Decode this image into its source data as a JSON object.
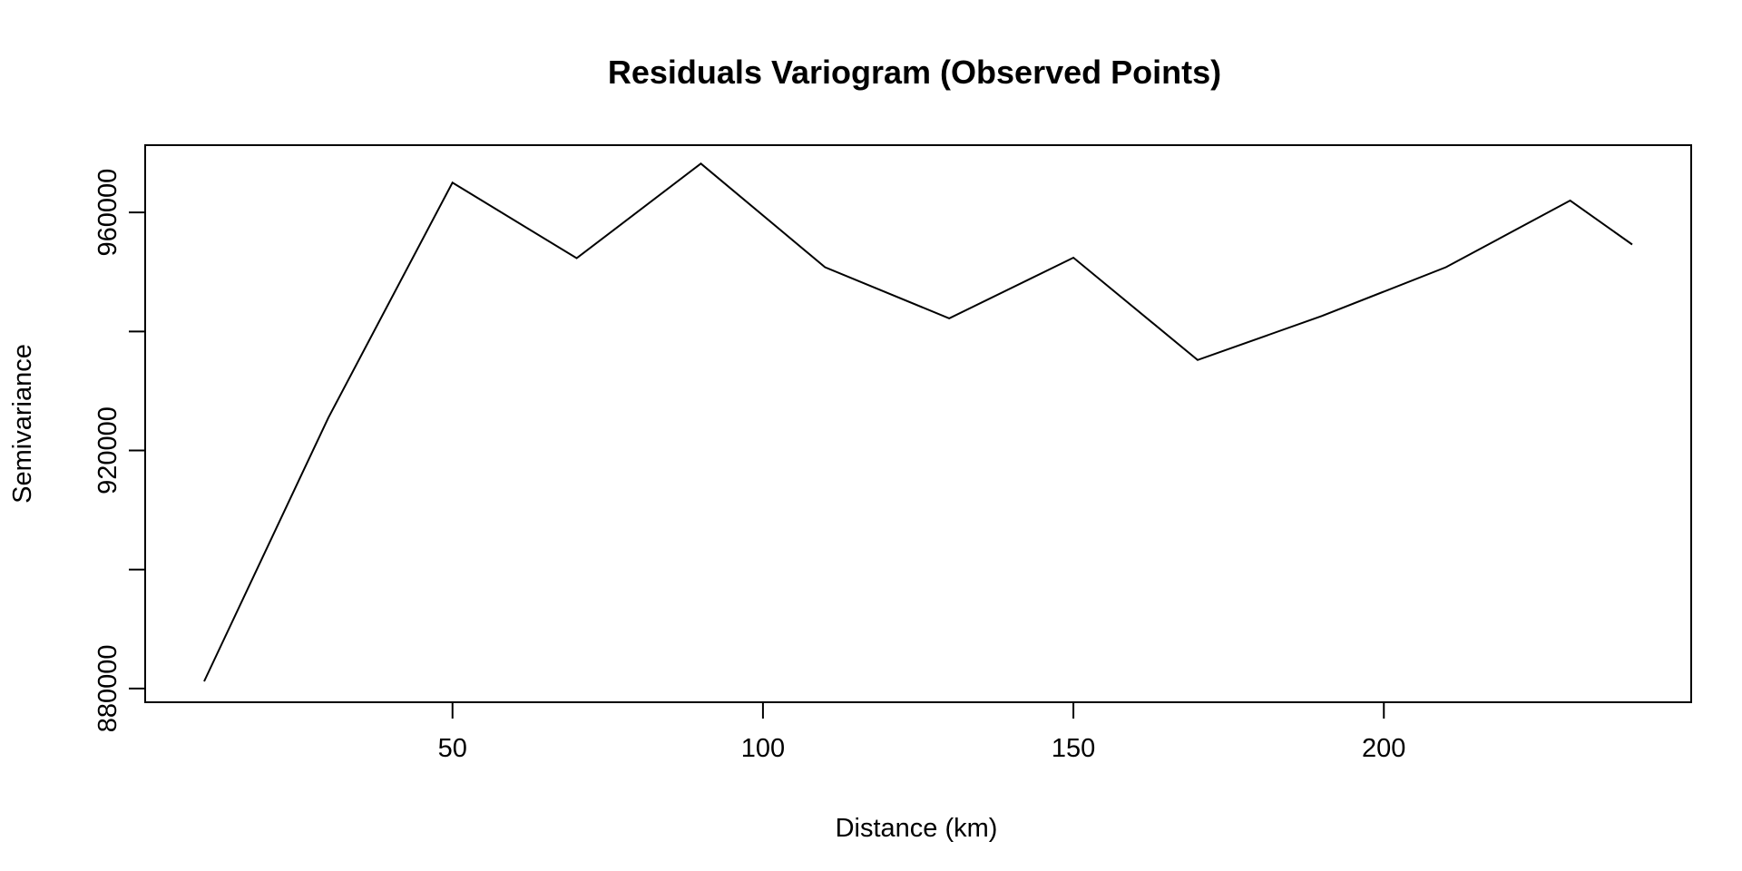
{
  "chart_data": {
    "type": "line",
    "title": "Residuals Variogram (Observed Points)",
    "xlabel": "Distance (km)",
    "ylabel": "Semivariance",
    "x": [
      10,
      30,
      50,
      70,
      90,
      110,
      130,
      150,
      170,
      190,
      210,
      230,
      240
    ],
    "series": [
      {
        "values": [
          881200,
          925500,
          965000,
          952300,
          968200,
          950800,
          942200,
          952400,
          935200,
          942600,
          950800,
          962000,
          954600
        ]
      }
    ],
    "xlim": [
      0.5,
      249.5
    ],
    "ylim": [
      877700,
      971300
    ],
    "xticks": [
      50,
      100,
      150,
      200
    ],
    "yticks": [
      880000,
      900000,
      920000,
      940000,
      960000
    ],
    "ytick_labels_shown": [
      "880000",
      "920000",
      "960000"
    ],
    "line_color": "#000000",
    "grid": false,
    "legend": "none"
  }
}
